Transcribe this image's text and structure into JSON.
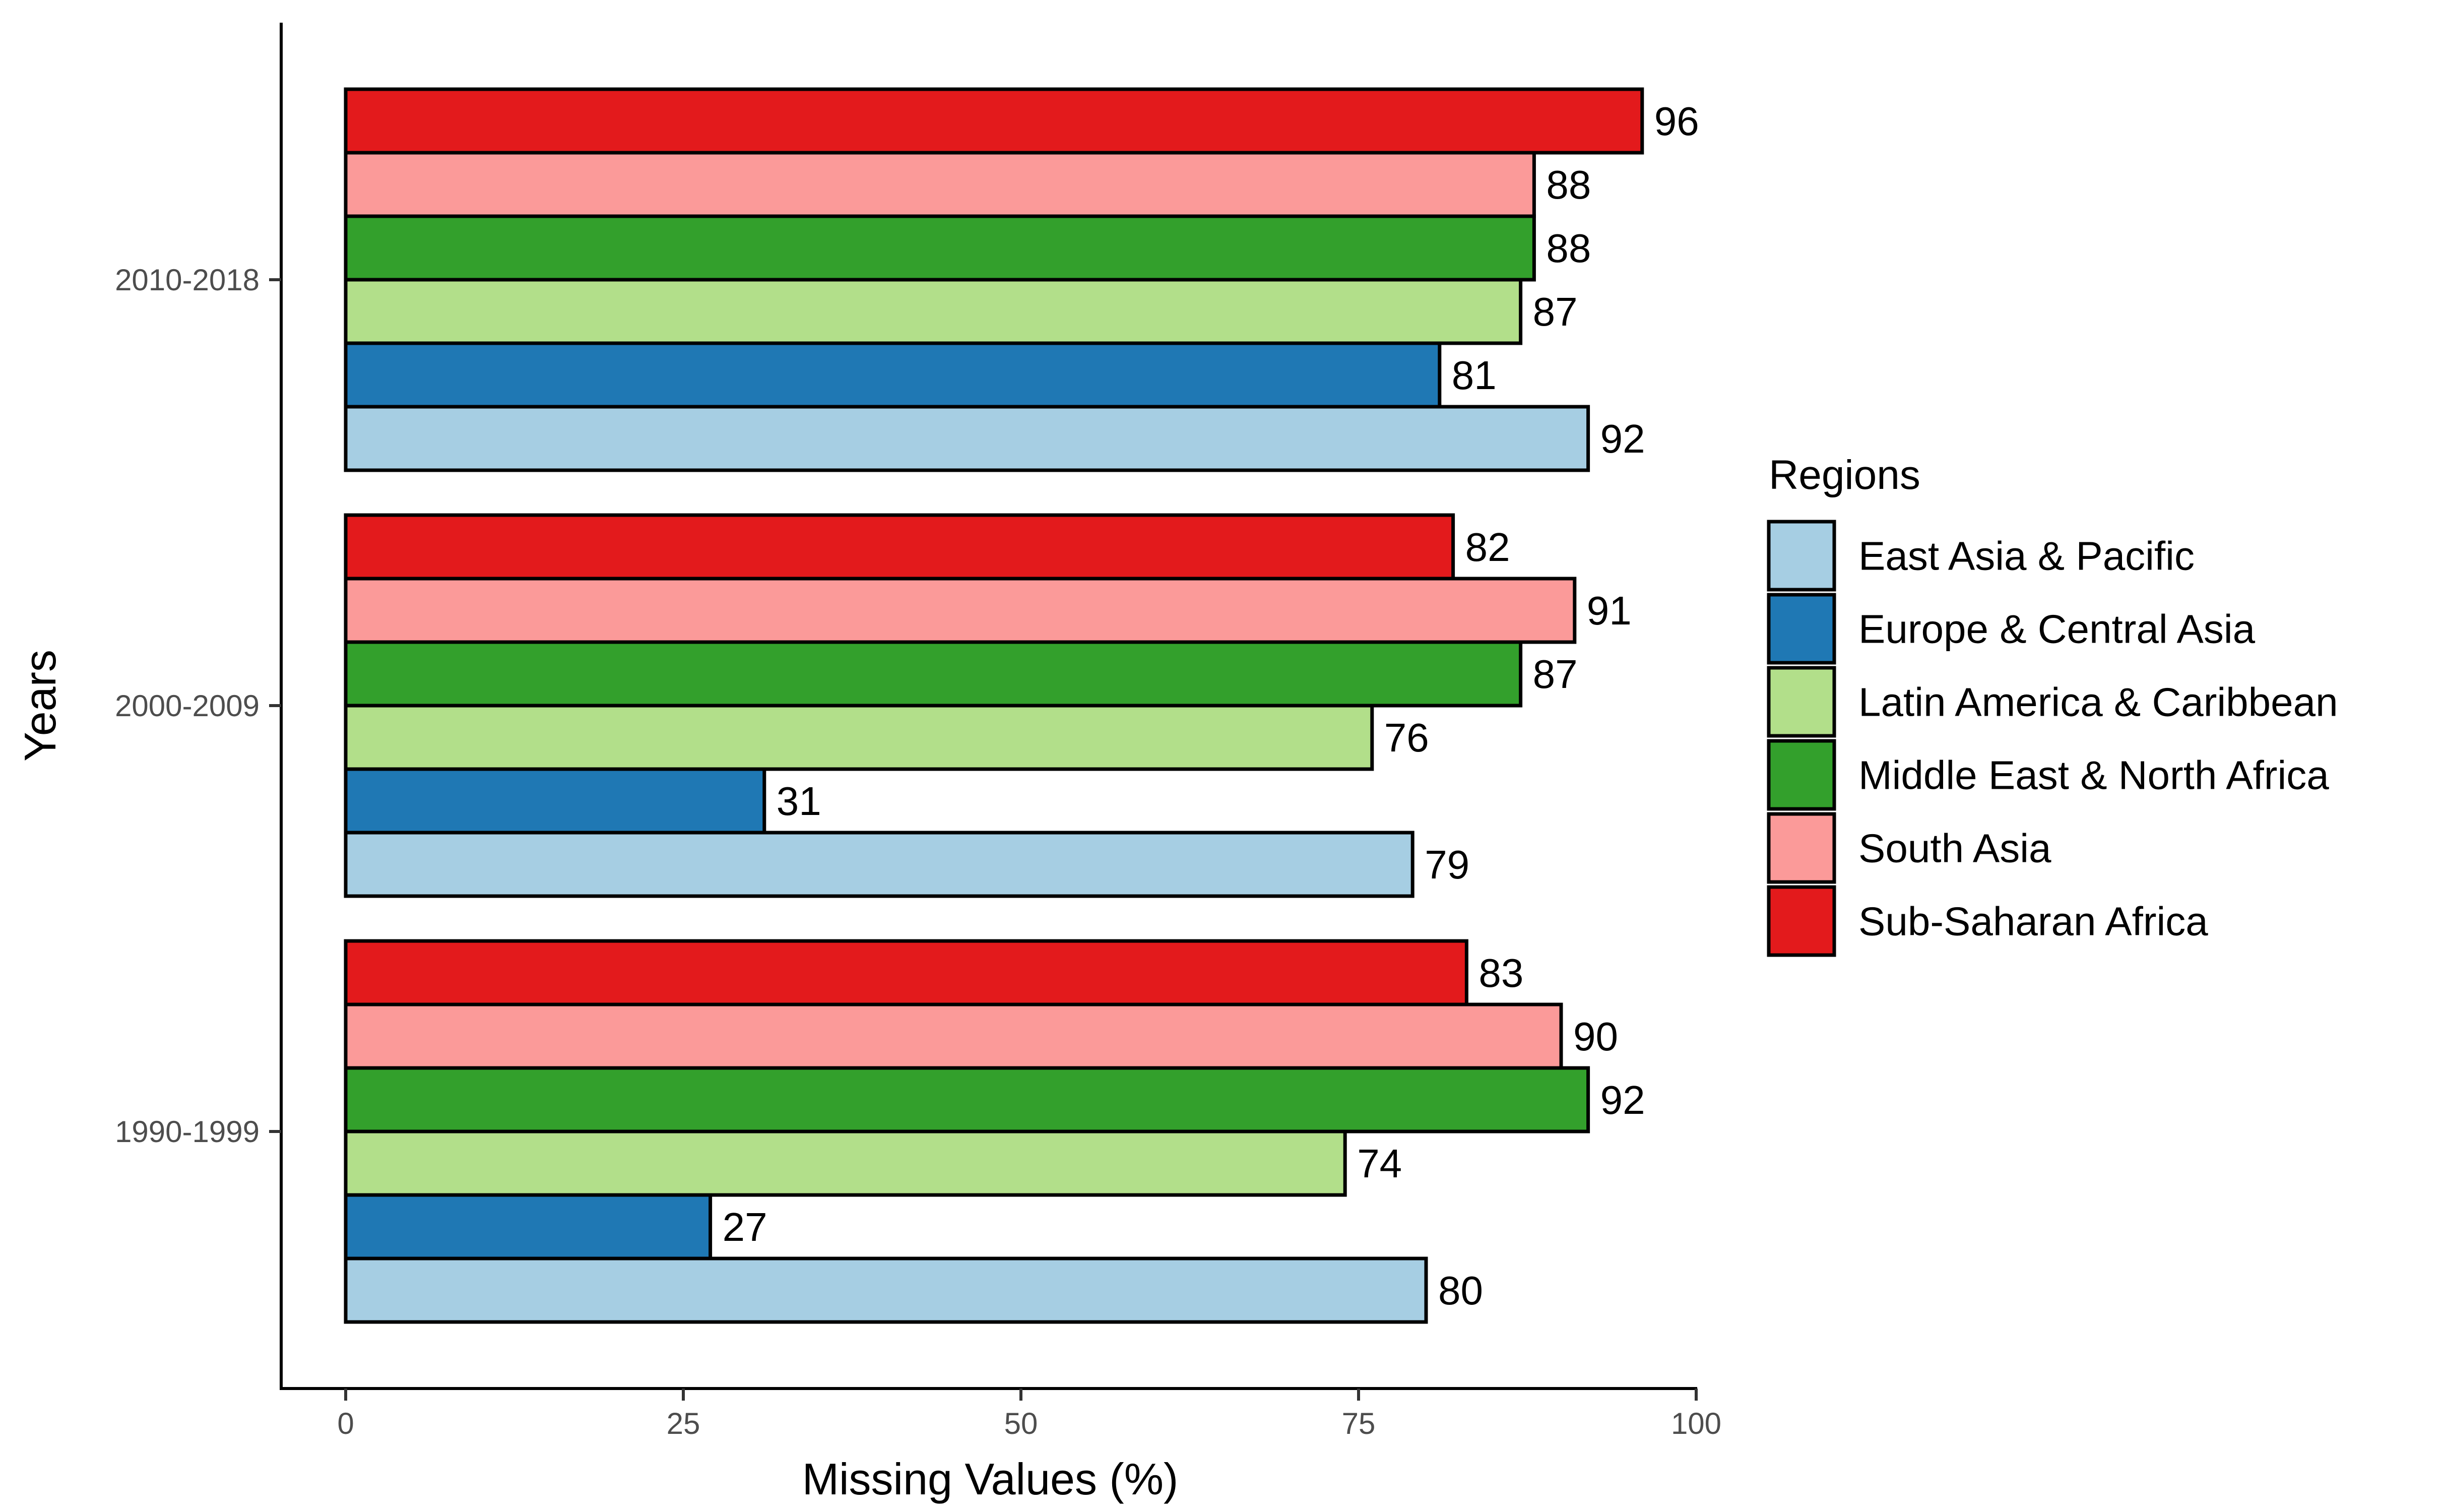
{
  "chart_data": {
    "type": "bar",
    "orientation": "horizontal",
    "xlabel": "Missing Values (%)",
    "ylabel": "Years",
    "xlim": [
      0,
      100
    ],
    "xticks": [
      "0",
      "25",
      "50",
      "75",
      "100"
    ],
    "grid": false,
    "legend_placement": "right",
    "categories": [
      "1990-1999",
      "2000-2009",
      "2010-2018"
    ],
    "series": [
      {
        "name": "East Asia & Pacific",
        "color": "#a6cee3",
        "values": [
          80,
          79,
          92
        ]
      },
      {
        "name": "Europe & Central Asia",
        "color": "#1f78b4",
        "values": [
          27,
          31,
          81
        ]
      },
      {
        "name": "Latin America & Caribbean",
        "color": "#b2df8a",
        "values": [
          74,
          76,
          87
        ]
      },
      {
        "name": "Middle East & North Africa",
        "color": "#33a02c",
        "values": [
          92,
          87,
          88
        ]
      },
      {
        "name": "South Asia",
        "color": "#fb9a99",
        "values": [
          90,
          91,
          88
        ]
      },
      {
        "name": "Sub-Saharan Africa",
        "color": "#e31a1c",
        "values": [
          83,
          82,
          96
        ]
      }
    ],
    "legend_title": "Regions"
  }
}
